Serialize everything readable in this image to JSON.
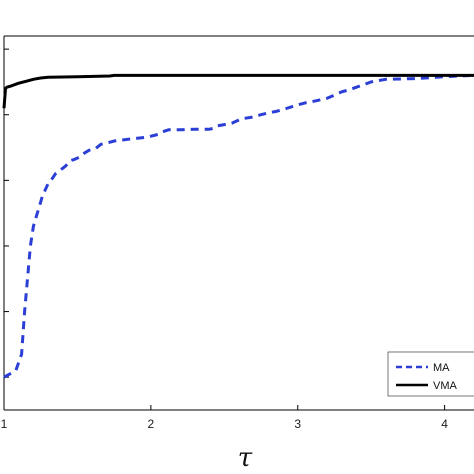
{
  "chart_data": {
    "type": "line",
    "title": "",
    "xlabel": "τ",
    "ylabel": "",
    "xlim": [
      1,
      4.2
    ],
    "ylim": [
      0.45,
      1.02
    ],
    "x_ticks": [
      1,
      2,
      3,
      4
    ],
    "x_tick_labels": [
      "1",
      "2",
      "3",
      "4"
    ],
    "y_ticks": [
      0.5,
      0.6,
      0.7,
      0.8,
      0.9,
      1.0
    ],
    "grid": false,
    "legend_position": "bottom-right",
    "series": [
      {
        "name": "MA",
        "style": "dashed",
        "color": "#2b3fd6",
        "x": [
          1.0,
          1.08,
          1.12,
          1.14,
          1.16,
          1.18,
          1.2,
          1.22,
          1.24,
          1.26,
          1.28,
          1.3,
          1.32,
          1.35,
          1.38,
          1.42,
          1.45,
          1.48,
          1.52,
          1.55,
          1.58,
          1.62,
          1.66,
          1.7,
          1.75,
          1.82,
          1.9,
          1.98,
          2.05,
          2.08,
          2.12,
          2.2,
          2.3,
          2.4,
          2.42,
          2.45,
          2.55,
          2.58,
          2.62,
          2.68,
          2.75,
          2.8,
          2.85,
          2.9,
          3.0,
          3.05,
          3.1,
          3.2,
          3.25,
          3.3,
          3.35,
          3.4,
          3.45,
          3.5,
          3.55,
          3.6,
          3.8,
          4.0,
          4.2
        ],
        "y": [
          0.5,
          0.51,
          0.535,
          0.6,
          0.65,
          0.7,
          0.73,
          0.745,
          0.76,
          0.775,
          0.785,
          0.795,
          0.8,
          0.81,
          0.815,
          0.822,
          0.83,
          0.832,
          0.836,
          0.842,
          0.846,
          0.848,
          0.855,
          0.857,
          0.86,
          0.862,
          0.864,
          0.866,
          0.87,
          0.874,
          0.877,
          0.877,
          0.878,
          0.878,
          0.879,
          0.883,
          0.887,
          0.89,
          0.894,
          0.896,
          0.9,
          0.903,
          0.905,
          0.908,
          0.915,
          0.918,
          0.92,
          0.925,
          0.93,
          0.935,
          0.938,
          0.942,
          0.946,
          0.95,
          0.952,
          0.954,
          0.955,
          0.958,
          0.96
        ]
      },
      {
        "name": "VMA",
        "style": "solid",
        "color": "#000000",
        "x": [
          1.0,
          1.01,
          1.02,
          1.05,
          1.1,
          1.15,
          1.2,
          1.25,
          1.3,
          1.5,
          1.72,
          1.75,
          2.0,
          3.0,
          4.0,
          4.2
        ],
        "y": [
          0.91,
          0.94,
          0.942,
          0.944,
          0.948,
          0.951,
          0.954,
          0.956,
          0.957,
          0.958,
          0.959,
          0.96,
          0.96,
          0.96,
          0.96,
          0.96
        ]
      }
    ]
  }
}
